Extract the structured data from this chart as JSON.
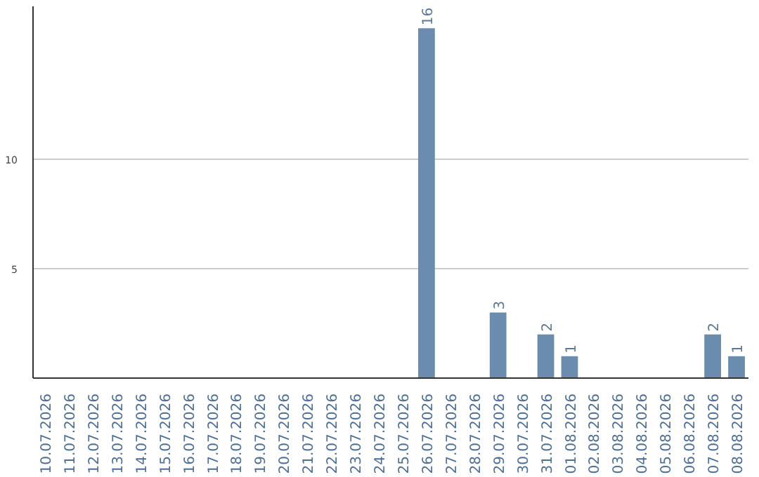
{
  "chart_data": {
    "type": "bar",
    "categories": [
      "10.07.2026",
      "11.07.2026",
      "12.07.2026",
      "13.07.2026",
      "14.07.2026",
      "15.07.2026",
      "16.07.2026",
      "17.07.2026",
      "18.07.2026",
      "19.07.2026",
      "20.07.2026",
      "21.07.2026",
      "22.07.2026",
      "23.07.2026",
      "24.07.2026",
      "25.07.2026",
      "26.07.2026",
      "27.07.2026",
      "28.07.2026",
      "29.07.2026",
      "30.07.2026",
      "31.07.2026",
      "01.08.2026",
      "02.08.2026",
      "03.08.2026",
      "04.08.2026",
      "05.08.2026",
      "06.08.2026",
      "07.08.2026",
      "08.08.2026"
    ],
    "values": [
      0,
      0,
      0,
      0,
      0,
      0,
      0,
      0,
      0,
      0,
      0,
      0,
      0,
      0,
      0,
      0,
      16,
      0,
      0,
      3,
      0,
      2,
      1,
      0,
      0,
      0,
      0,
      0,
      2,
      1
    ],
    "value_labels": [
      null,
      null,
      null,
      null,
      null,
      null,
      null,
      null,
      null,
      null,
      null,
      null,
      null,
      null,
      null,
      null,
      "16",
      null,
      null,
      "3",
      null,
      "2",
      "1",
      null,
      null,
      null,
      null,
      null,
      "2",
      "1"
    ],
    "color": "#6a8caf",
    "ylim": [
      0,
      17
    ],
    "yticks": [
      5,
      10
    ],
    "grid": "y"
  }
}
